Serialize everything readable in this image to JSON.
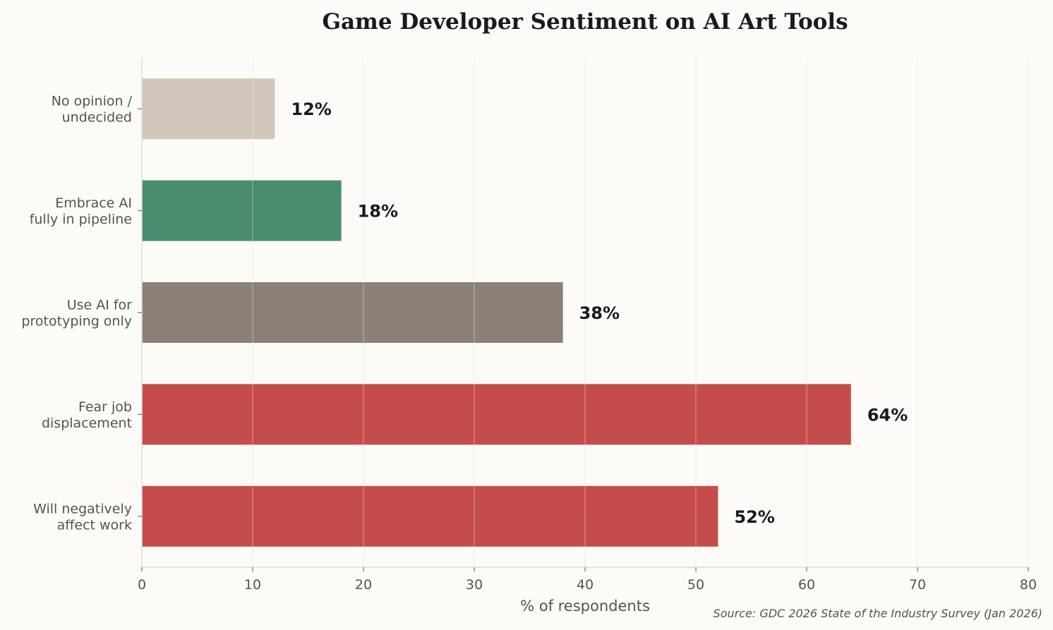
{
  "chart_data": {
    "type": "bar",
    "orientation": "horizontal",
    "title": "Game Developer Sentiment on AI Art Tools",
    "xlabel": "% of respondents",
    "ylabel": "",
    "source": "Source: GDC 2026 State of the Industry Survey (Jan 2026)",
    "xlim": [
      0,
      80
    ],
    "xticks": [
      0,
      10,
      20,
      30,
      40,
      50,
      60,
      70,
      80
    ],
    "grid": "vertical",
    "categories": [
      "No opinion /\nundecided",
      "Embrace AI\nfully in pipeline",
      "Use AI for\nprototyping only",
      "Fear job\ndisplacement",
      "Will negatively\naffect work"
    ],
    "values": [
      12,
      18,
      38,
      64,
      52
    ],
    "data_labels": [
      "12%",
      "18%",
      "38%",
      "64%",
      "52%"
    ],
    "colors": [
      "#d1c8bb",
      "#4a8c6e",
      "#8b8178",
      "#c44d4c",
      "#c44d4c"
    ]
  }
}
